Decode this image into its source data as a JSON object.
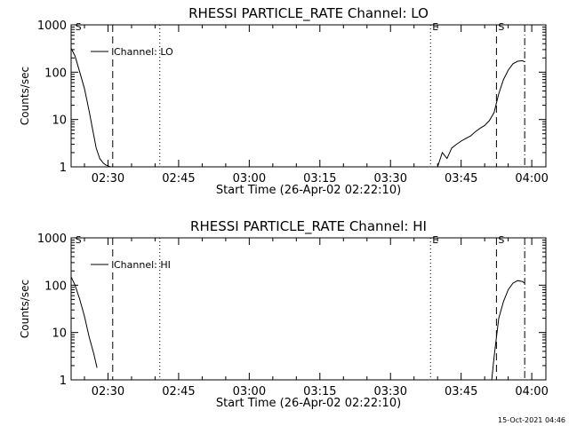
{
  "footer": {
    "timestamp": "15-Oct-2021 04:46"
  },
  "chart_data": [
    {
      "type": "line",
      "title": "RHESSI PARTICLE_RATE Channel: LO",
      "xlabel": "Start Time (26-Apr-02 02:22:10)",
      "ylabel": "Counts/sec",
      "y_scale": "log",
      "xlim": [
        "02:22:10",
        "04:03:00"
      ],
      "ylim": [
        1,
        1000
      ],
      "xticks": [
        "02:30",
        "02:45",
        "03:00",
        "03:15",
        "03:30",
        "03:45",
        "04:00"
      ],
      "yticks": [
        "1",
        "10",
        "100",
        "1000"
      ],
      "grid": false,
      "legend": {
        "position": "top-left",
        "entries": [
          "Channel: LO"
        ]
      },
      "markers": [
        {
          "time": "02:22:40",
          "style": "label",
          "text": "S"
        },
        {
          "time": "02:31:00",
          "style": "dashed",
          "text": ""
        },
        {
          "time": "02:41:00",
          "style": "dotted",
          "text": ""
        },
        {
          "time": "03:38:30",
          "style": "dotted",
          "text": "E"
        },
        {
          "time": "03:52:30",
          "style": "dashed",
          "text": "S"
        },
        {
          "time": "03:58:30",
          "style": "dashdot",
          "text": ""
        }
      ],
      "series": [
        {
          "name": "Channel: LO",
          "x": [
            "02:22:10",
            "02:23:00",
            "02:24:00",
            "02:25:00",
            "02:26:00",
            "02:26:45",
            "02:27:30",
            "02:28:15",
            "02:29:00",
            "02:29:30",
            "02:30:00",
            "02:30:30"
          ],
          "y": [
            320,
            220,
            100,
            45,
            15,
            6,
            2.5,
            1.5,
            1.2,
            1.1,
            1.05,
            1.0
          ]
        },
        {
          "name": "Channel: LO",
          "x": [
            "03:40:00",
            "03:41:00",
            "03:42:00",
            "03:43:00",
            "03:44:00",
            "03:45:00",
            "03:46:00",
            "03:47:00",
            "03:48:00",
            "03:49:00",
            "03:50:00",
            "03:51:00",
            "03:52:00",
            "03:53:00",
            "03:54:00",
            "03:55:00",
            "03:56:00",
            "03:57:00",
            "03:58:00",
            "03:58:30"
          ],
          "y": [
            1.0,
            2.0,
            1.5,
            2.5,
            3.0,
            3.5,
            4.0,
            4.5,
            5.5,
            6.5,
            7.5,
            9.5,
            14,
            35,
            70,
            110,
            150,
            170,
            175,
            165
          ]
        }
      ]
    },
    {
      "type": "line",
      "title": "RHESSI PARTICLE_RATE Channel: HI",
      "xlabel": "Start Time (26-Apr-02 02:22:10)",
      "ylabel": "Counts/sec",
      "y_scale": "log",
      "xlim": [
        "02:22:10",
        "04:03:00"
      ],
      "ylim": [
        1,
        1000
      ],
      "xticks": [
        "02:30",
        "02:45",
        "03:00",
        "03:15",
        "03:30",
        "03:45",
        "04:00"
      ],
      "yticks": [
        "1",
        "10",
        "100",
        "1000"
      ],
      "grid": false,
      "legend": {
        "position": "top-left",
        "entries": [
          "Channel: HI"
        ]
      },
      "markers": [
        {
          "time": "02:22:40",
          "style": "label",
          "text": "S"
        },
        {
          "time": "02:31:00",
          "style": "dashed",
          "text": ""
        },
        {
          "time": "02:41:00",
          "style": "dotted",
          "text": ""
        },
        {
          "time": "03:38:30",
          "style": "dotted",
          "text": "E"
        },
        {
          "time": "03:52:30",
          "style": "dashed",
          "text": "S"
        },
        {
          "time": "03:58:30",
          "style": "dashdot",
          "text": ""
        }
      ],
      "series": [
        {
          "name": "Channel: HI",
          "x": [
            "02:22:10",
            "02:23:00",
            "02:24:00",
            "02:25:00",
            "02:26:00",
            "02:27:00",
            "02:27:40"
          ],
          "y": [
            150,
            100,
            50,
            22,
            8,
            3.5,
            1.8
          ]
        },
        {
          "name": "Channel: HI",
          "x": [
            "03:51:30",
            "03:52:00",
            "03:52:30",
            "03:53:00",
            "03:54:00",
            "03:55:00",
            "03:56:00",
            "03:57:00",
            "03:58:00",
            "03:58:30"
          ],
          "y": [
            1.0,
            3.0,
            8,
            20,
            45,
            80,
            110,
            125,
            120,
            110
          ]
        }
      ]
    }
  ]
}
